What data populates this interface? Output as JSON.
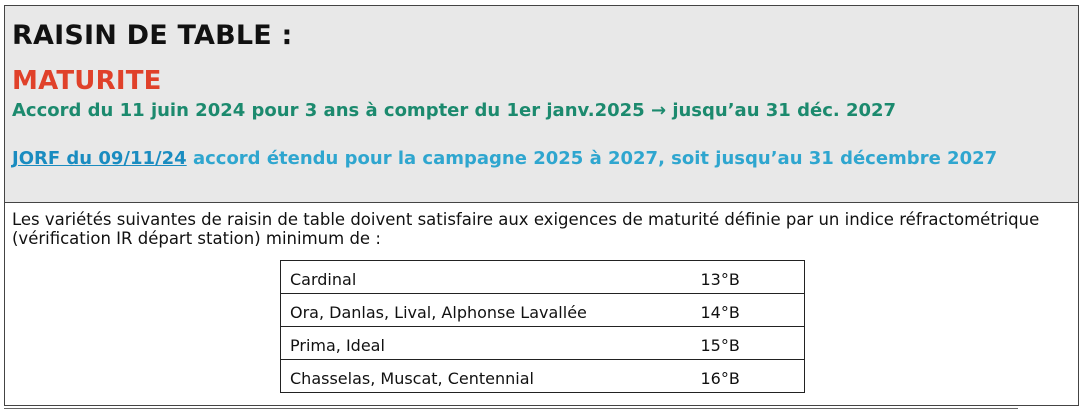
{
  "header": {
    "title": "RAISIN DE TABLE :",
    "subtitle": "MATURITE",
    "accord": "Accord du 11 juin 2024 pour 3 ans à compter du 1er janv.2025 → jusqu’au 31 déc. 2027",
    "jorf_link": "JORF du 09/11/24",
    "jorf_text": " accord étendu pour la campagne 2025 à 2027, soit jusqu’au 31 décembre 2027"
  },
  "intro": "Les variétés suivantes de raisin de table doivent satisfaire aux exigences de maturité définie par un indice réfractométrique (vérification IR départ station) minimum de :",
  "table": {
    "rows": [
      {
        "variety": "Cardinal",
        "value": "13°B"
      },
      {
        "variety": "Ora, Danlas, Lival, Alphonse Lavallée",
        "value": "14°B"
      },
      {
        "variety": "Prima, Ideal",
        "value": "15°B"
      },
      {
        "variety": "Chasselas, Muscat, Centennial",
        "value": "16°B"
      }
    ]
  },
  "colors": {
    "title": "#111111",
    "subtitle": "#e0412a",
    "accord": "#1c8a6e",
    "jorf": "#2fa6cf",
    "header_bg": "#e8e8e8"
  }
}
